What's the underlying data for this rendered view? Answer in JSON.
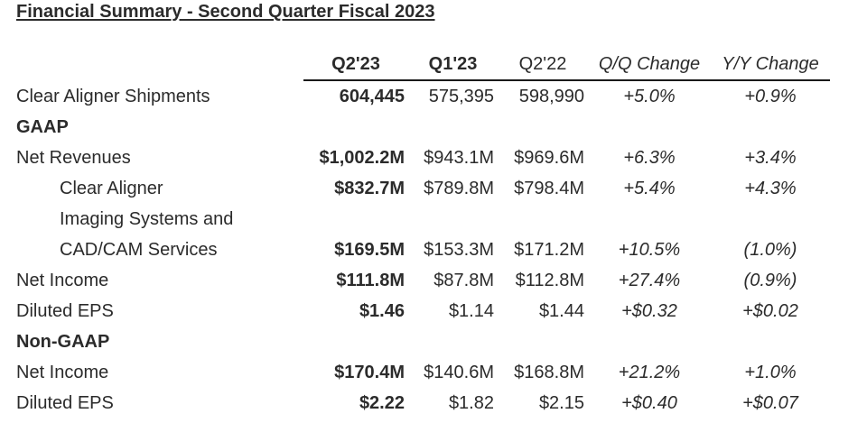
{
  "title": "Financial Summary - Second Quarter Fiscal 2023",
  "columns": [
    "Q2'23",
    "Q1'23",
    "Q2'22",
    "Q/Q Change",
    "Y/Y Change"
  ],
  "rows": [
    {
      "label": "Clear Aligner Shipments",
      "q2_23": "604,445",
      "q1_23": "575,395",
      "q2_22": "598,990",
      "qq": "+5.0%",
      "yy": "+0.9%"
    },
    {
      "label": "GAAP"
    },
    {
      "label": "Net Revenues",
      "q2_23": "$1,002.2M",
      "q1_23": "$943.1M",
      "q2_22": "$969.6M",
      "qq": "+6.3%",
      "yy": "+3.4%"
    },
    {
      "label": "Clear Aligner",
      "q2_23": "$832.7M",
      "q1_23": "$789.8M",
      "q2_22": "$798.4M",
      "qq": "+5.4%",
      "yy": "+4.3%"
    },
    {
      "label": "Imaging Systems and"
    },
    {
      "label": "CAD/CAM Services",
      "q2_23": "$169.5M",
      "q1_23": "$153.3M",
      "q2_22": "$171.2M",
      "qq": "+10.5%",
      "yy": "(1.0%)"
    },
    {
      "label": "Net Income",
      "q2_23": "$111.8M",
      "q1_23": "$87.8M",
      "q2_22": "$112.8M",
      "qq": "+27.4%",
      "yy": "(0.9%)"
    },
    {
      "label": "Diluted EPS",
      "q2_23": "$1.46",
      "q1_23": "$1.14",
      "q2_22": "$1.44",
      "qq": "+$0.32",
      "yy": "+$0.02"
    },
    {
      "label": "Non-GAAP"
    },
    {
      "label": "Net Income",
      "q2_23": "$170.4M",
      "q1_23": "$140.6M",
      "q2_22": "$168.8M",
      "qq": "+21.2%",
      "yy": "+1.0%"
    },
    {
      "label": "Diluted EPS",
      "q2_23": "$2.22",
      "q1_23": "$1.82",
      "q2_22": "$2.15",
      "qq": "+$0.40",
      "yy": "+$0.07"
    }
  ]
}
